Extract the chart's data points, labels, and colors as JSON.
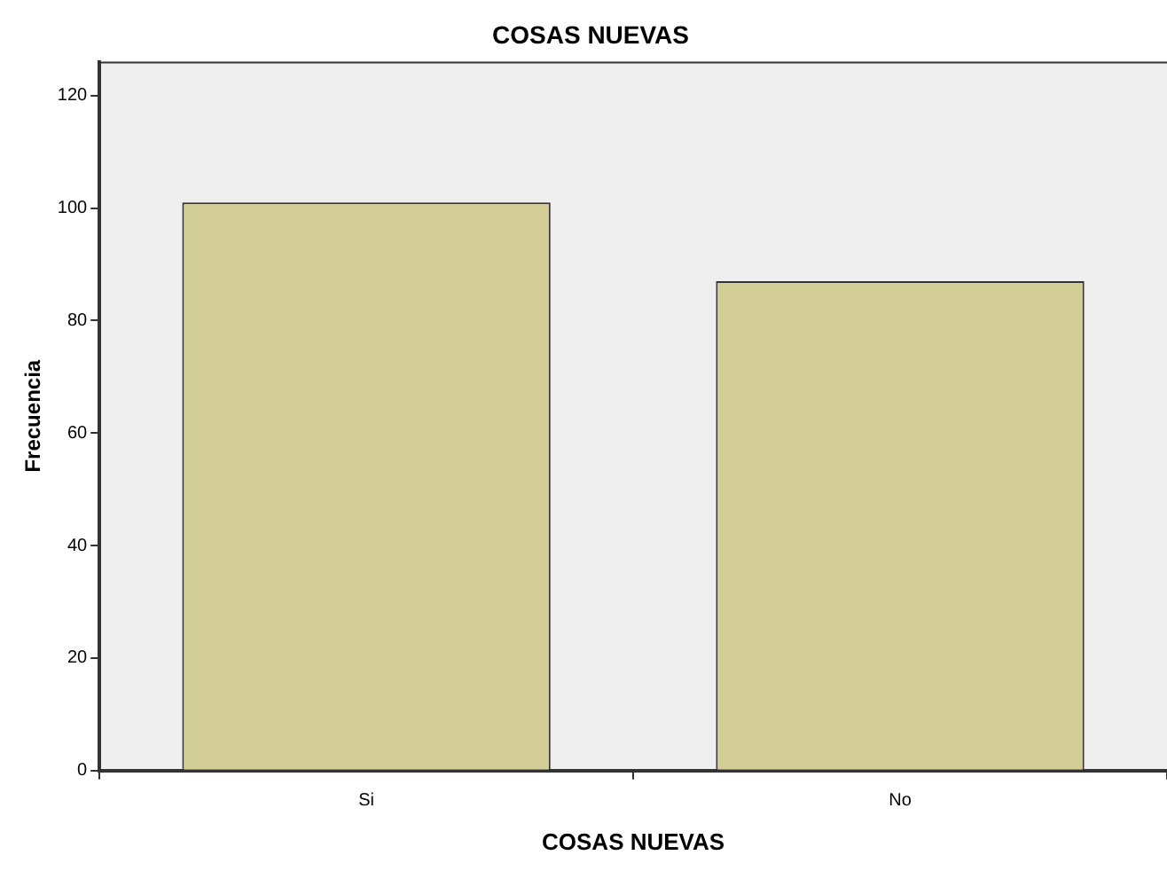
{
  "chart_data": {
    "type": "bar",
    "title": "COSAS NUEVAS",
    "xlabel": "COSAS NUEVAS",
    "ylabel": "Frecuencia",
    "categories": [
      "Si",
      "No"
    ],
    "values": [
      101,
      87
    ],
    "color": "#d3ce97",
    "ylim": [
      0,
      126
    ],
    "yticks": [
      0,
      20,
      40,
      60,
      80,
      100,
      120
    ],
    "grid": false,
    "legend": false
  }
}
